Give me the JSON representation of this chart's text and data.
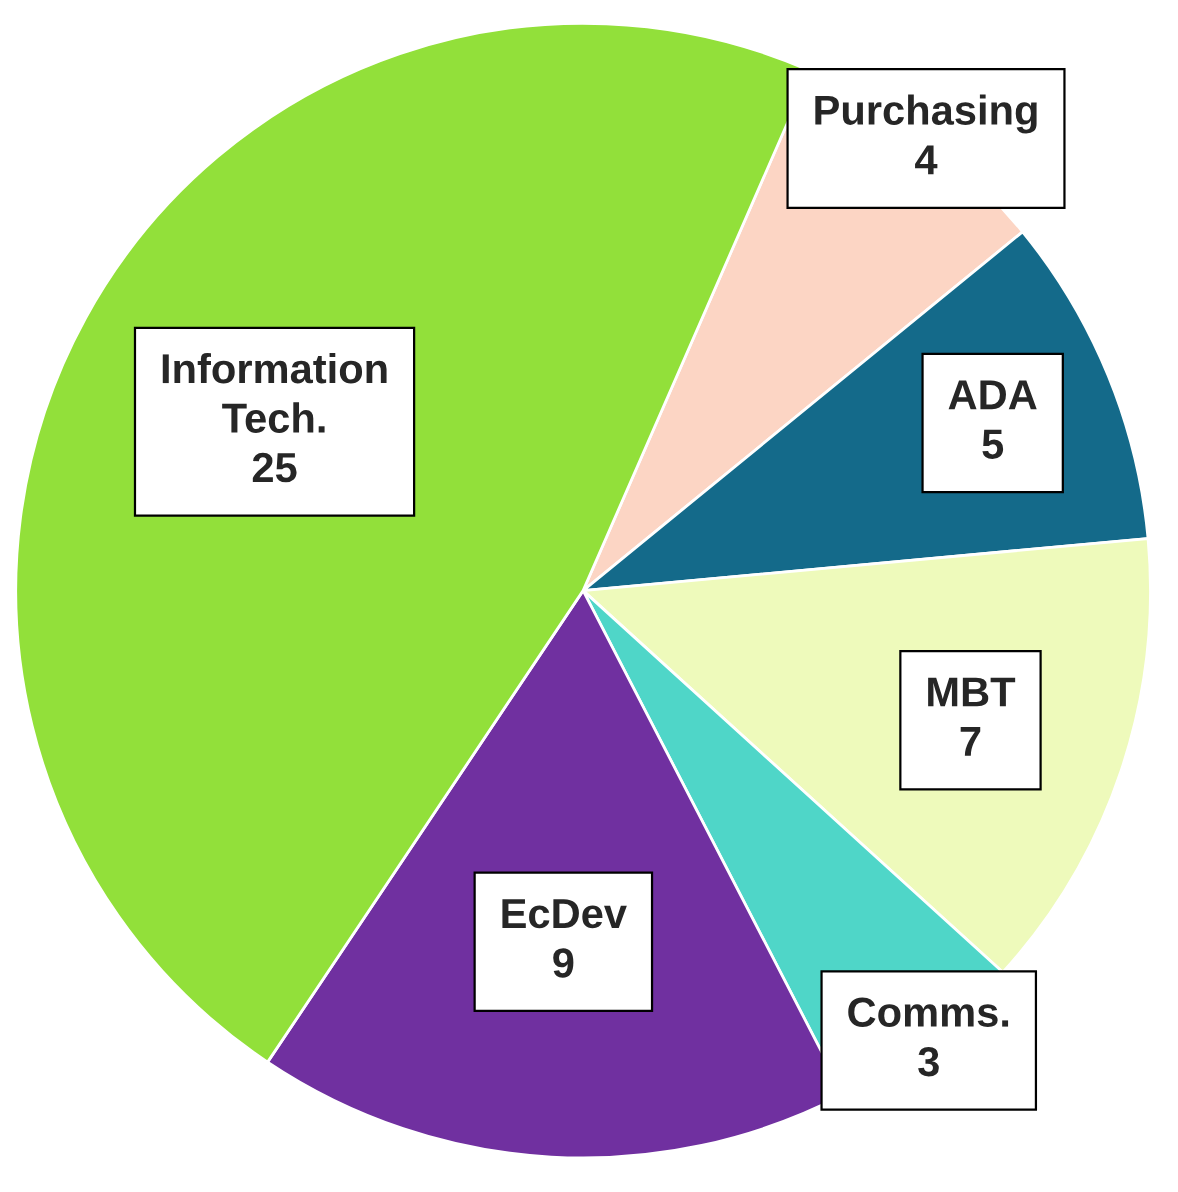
{
  "chart_data": {
    "type": "pie",
    "categories": [
      "Purchasing",
      "ADA",
      "MBT",
      "Comms.",
      "EcDev",
      "Information\nTech."
    ],
    "values": [
      4,
      5,
      7,
      3,
      9,
      25
    ],
    "colors": [
      "#fcd5c4",
      "#146a8a",
      "#eefabb",
      "#4fd6c8",
      "#7030a0",
      "#92e03a"
    ],
    "data_labels": true
  }
}
